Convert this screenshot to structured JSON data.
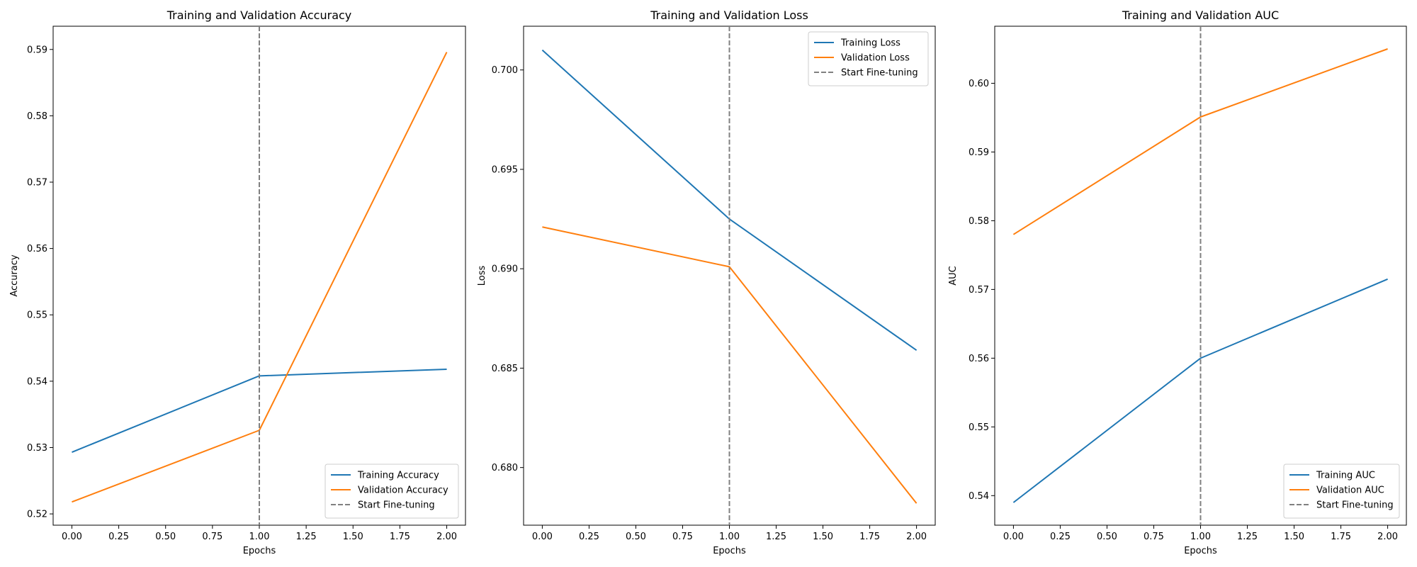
{
  "colors": {
    "training": "#1f77b4",
    "validation": "#ff7f0e",
    "finetune": "#808080",
    "axes": "#000000",
    "background": "#ffffff"
  },
  "chart_data": [
    {
      "type": "line",
      "title": "Training and Validation Accuracy",
      "xlabel": "Epochs",
      "ylabel": "Accuracy",
      "xlim": [
        -0.1,
        2.1
      ],
      "ylim": [
        0.5183,
        0.5935
      ],
      "xticks": [
        0,
        0.25,
        0.5,
        0.75,
        1.0,
        1.25,
        1.5,
        1.75,
        2.0
      ],
      "xtick_labels": [
        "0.00",
        "0.25",
        "0.50",
        "0.75",
        "1.00",
        "1.25",
        "1.50",
        "1.75",
        "2.00"
      ],
      "yticks": [
        0.52,
        0.53,
        0.54,
        0.55,
        0.56,
        0.57,
        0.58,
        0.59
      ],
      "ytick_labels": [
        "0.52",
        "0.53",
        "0.54",
        "0.55",
        "0.56",
        "0.57",
        "0.58",
        "0.59"
      ],
      "x": [
        0,
        1,
        2
      ],
      "series": [
        {
          "name": "Training Accuracy",
          "color_key": "training",
          "values": [
            0.5293,
            0.5408,
            0.5418
          ]
        },
        {
          "name": "Validation Accuracy",
          "color_key": "validation",
          "values": [
            0.5218,
            0.5326,
            0.5896
          ]
        }
      ],
      "vline": {
        "name": "Start Fine-tuning",
        "x": 1,
        "color_key": "finetune"
      },
      "legend": "lower right",
      "grid": false
    },
    {
      "type": "line",
      "title": "Training and Validation Loss",
      "xlabel": "Epochs",
      "ylabel": "Loss",
      "xlim": [
        -0.1,
        2.1
      ],
      "ylim": [
        0.6771,
        0.7022
      ],
      "xticks": [
        0,
        0.25,
        0.5,
        0.75,
        1.0,
        1.25,
        1.5,
        1.75,
        2.0
      ],
      "xtick_labels": [
        "0.00",
        "0.25",
        "0.50",
        "0.75",
        "1.00",
        "1.25",
        "1.50",
        "1.75",
        "2.00"
      ],
      "yticks": [
        0.68,
        0.685,
        0.69,
        0.695,
        0.7
      ],
      "ytick_labels": [
        "0.680",
        "0.685",
        "0.690",
        "0.695",
        "0.700"
      ],
      "x": [
        0,
        1,
        2
      ],
      "series": [
        {
          "name": "Training Loss",
          "color_key": "training",
          "values": [
            0.701,
            0.6925,
            0.6859
          ]
        },
        {
          "name": "Validation Loss",
          "color_key": "validation",
          "values": [
            0.6921,
            0.6901,
            0.6782
          ]
        }
      ],
      "vline": {
        "name": "Start Fine-tuning",
        "x": 1,
        "color_key": "finetune"
      },
      "legend": "upper right",
      "grid": false
    },
    {
      "type": "line",
      "title": "Training and Validation AUC",
      "xlabel": "Epochs",
      "ylabel": "AUC",
      "xlim": [
        -0.1,
        2.1
      ],
      "ylim": [
        0.5357,
        0.6083
      ],
      "xticks": [
        0,
        0.25,
        0.5,
        0.75,
        1.0,
        1.25,
        1.5,
        1.75,
        2.0
      ],
      "xtick_labels": [
        "0.00",
        "0.25",
        "0.50",
        "0.75",
        "1.00",
        "1.25",
        "1.50",
        "1.75",
        "2.00"
      ],
      "yticks": [
        0.54,
        0.55,
        0.56,
        0.57,
        0.58,
        0.59,
        0.6
      ],
      "ytick_labels": [
        "0.54",
        "0.55",
        "0.56",
        "0.57",
        "0.58",
        "0.59",
        "0.60"
      ],
      "x": [
        0,
        1,
        2
      ],
      "series": [
        {
          "name": "Training AUC",
          "color_key": "training",
          "values": [
            0.539,
            0.56,
            0.5715
          ]
        },
        {
          "name": "Validation AUC",
          "color_key": "validation",
          "values": [
            0.578,
            0.5951,
            0.605
          ]
        }
      ],
      "vline": {
        "name": "Start Fine-tuning",
        "x": 1,
        "color_key": "finetune"
      },
      "legend": "lower right",
      "grid": false
    }
  ]
}
